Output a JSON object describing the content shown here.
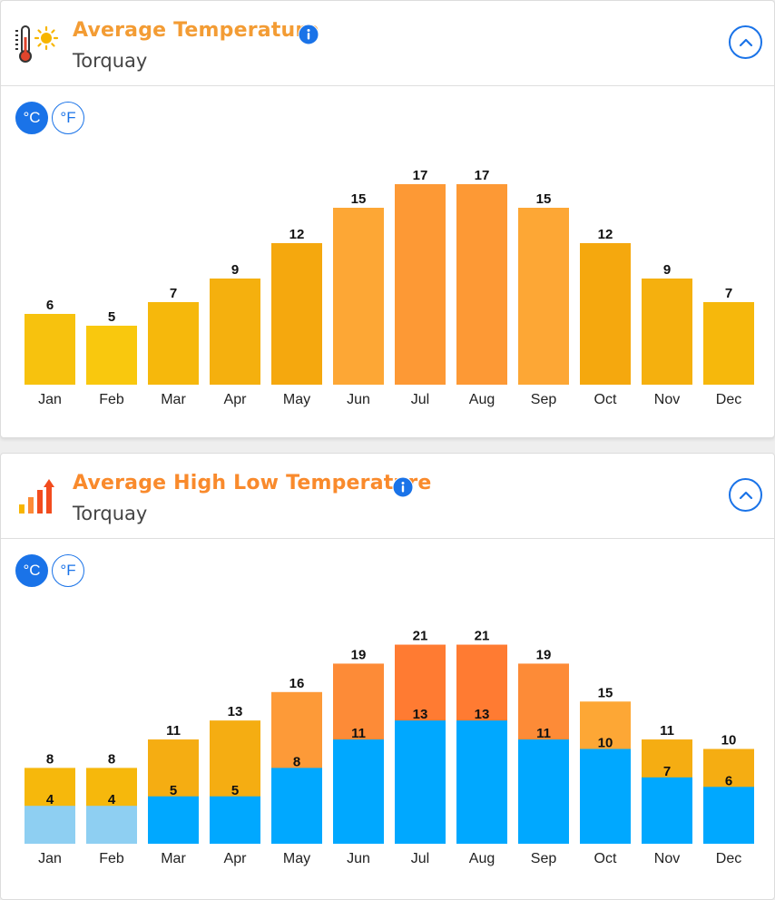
{
  "colors": {
    "accent": "#1a73e8",
    "title_orange": "#f39c34",
    "bar_palette": {
      "t5": "#f9c80e",
      "t6": "#f7c20e",
      "t7": "#f6b80c",
      "t9": "#f5b00e",
      "t10": "#f5ad12",
      "t11": "#f5ad12",
      "t12": "#f5a80e",
      "t13": "#f5ad12",
      "t15": "#fda735",
      "t16": "#fd9a38",
      "t17": "#fd9935",
      "t19": "#fd8b37",
      "t21": "#ff7b32",
      "low_light": "#8ecff2",
      "low": "#00a8ff"
    }
  },
  "card1": {
    "title": "Average Temperature",
    "subtitle": "Torquay",
    "unit_c": "°C",
    "unit_f": "°F",
    "icon": "thermometer-sun-icon"
  },
  "card2": {
    "title": "Average High Low Temperature",
    "subtitle": "Torquay",
    "unit_c": "°C",
    "unit_f": "°F",
    "icon": "bar-chart-arrow-icon"
  },
  "chart_data": [
    {
      "type": "bar",
      "title": "",
      "xlabel": "",
      "ylabel": "",
      "categories": [
        "Jan",
        "Feb",
        "Mar",
        "Apr",
        "May",
        "Jun",
        "Jul",
        "Aug",
        "Sep",
        "Oct",
        "Nov",
        "Dec"
      ],
      "values": [
        6,
        5,
        7,
        9,
        12,
        15,
        17,
        17,
        15,
        12,
        9,
        7
      ],
      "data_labels": true,
      "grid": false,
      "legend": "none"
    },
    {
      "type": "bar",
      "title": "",
      "xlabel": "",
      "ylabel": "",
      "categories": [
        "Jan",
        "Feb",
        "Mar",
        "Apr",
        "May",
        "Jun",
        "Jul",
        "Aug",
        "Sep",
        "Oct",
        "Nov",
        "Dec"
      ],
      "series": [
        {
          "values": [
            8,
            8,
            11,
            13,
            16,
            19,
            21,
            21,
            19,
            15,
            11,
            10
          ]
        },
        {
          "values": [
            4,
            4,
            5,
            5,
            8,
            11,
            13,
            13,
            11,
            10,
            7,
            6
          ]
        }
      ],
      "data_labels": true,
      "grid": false,
      "legend": "none"
    }
  ]
}
